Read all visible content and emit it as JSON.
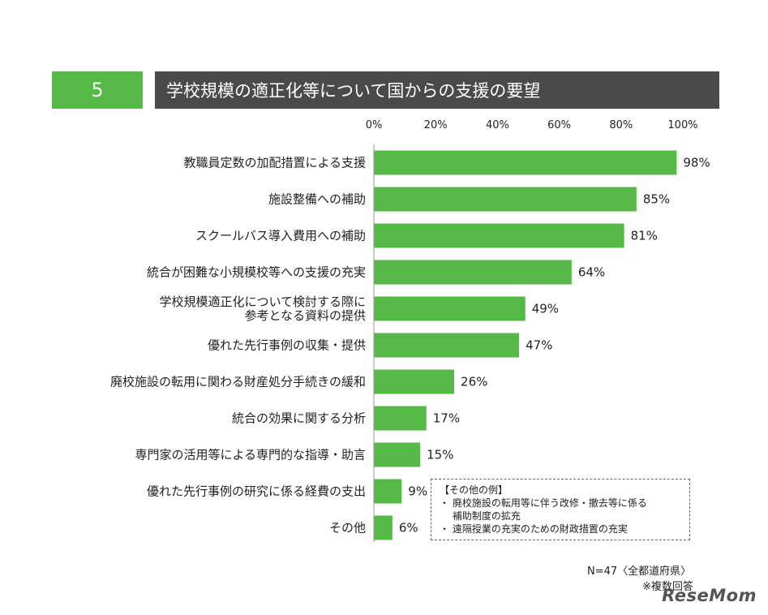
{
  "header": {
    "number": "5",
    "title": "学校規模の適正化等について国からの支援の要望"
  },
  "chart_data": {
    "type": "bar",
    "orientation": "horizontal",
    "categories": [
      "教職員定数の加配措置による支援",
      "施設整備への補助",
      "スクールバス導入費用への補助",
      "統合が困難な小規模校等への支援の充実",
      "学校規模適正化について検討する際に\n参考となる資料の提供",
      "優れた先行事例の収集・提供",
      "廃校施設の転用に関わる財産処分手続きの緩和",
      "統合の効果に関する分析",
      "専門家の活用等による専門的な指導・助言",
      "優れた先行事例の研究に係る経費の支出",
      "その他"
    ],
    "values": [
      98,
      85,
      81,
      64,
      49,
      47,
      26,
      17,
      15,
      9,
      6
    ],
    "value_labels": [
      "98%",
      "85%",
      "81%",
      "64%",
      "49%",
      "47%",
      "26%",
      "17%",
      "15%",
      "9%",
      "6%"
    ],
    "xlim": [
      0,
      100
    ],
    "x_ticks": [
      "0%",
      "20%",
      "40%",
      "60%",
      "80%",
      "100%"
    ],
    "x_tick_values": [
      0,
      20,
      40,
      60,
      80,
      100
    ],
    "axis_position": "top",
    "grid": false,
    "bar_color": "#56b847"
  },
  "note": {
    "title": "【その他の例】",
    "lines": [
      "・ 廃校施設の転用等に伴う改修・撤去等に係る",
      "　 補助制度の拡充",
      "・ 遠隔授業の充実のための財政措置の充実"
    ]
  },
  "footer": {
    "n": "N=47〈全都道府県〉",
    "multiple": "※複数回答"
  },
  "logo": "ReseMom"
}
